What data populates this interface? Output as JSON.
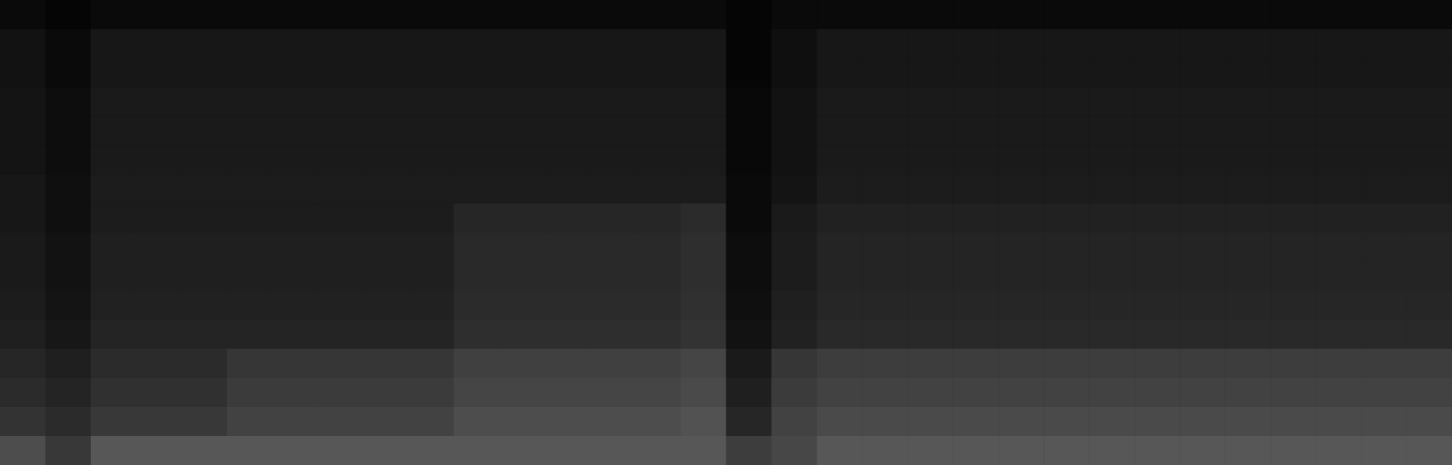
{
  "chart_data": {
    "type": "heatmap",
    "tick_labels": false,
    "zlim": [
      0,
      100
    ],
    "z": [
      [
        4,
        2,
        4,
        4,
        4,
        4,
        4,
        4,
        4,
        4,
        4,
        4,
        4,
        4,
        4,
        4,
        2,
        4,
        4,
        4,
        4,
        4,
        4,
        4,
        4,
        4,
        4,
        4,
        4,
        4,
        4,
        4
      ],
      [
        7,
        4,
        9,
        9,
        9,
        9,
        9,
        9,
        9,
        9,
        9,
        9,
        9,
        9,
        9,
        9,
        2,
        6,
        9,
        9,
        9,
        9,
        9,
        9,
        9,
        9,
        9,
        9,
        9,
        9,
        9,
        9
      ],
      [
        7,
        4,
        9,
        9,
        9,
        9,
        9,
        9,
        9,
        9,
        9,
        9,
        9,
        9,
        9,
        9,
        2,
        6,
        9,
        9,
        9,
        9,
        9,
        9,
        9,
        9,
        9,
        9,
        9,
        9,
        9,
        9
      ],
      [
        8,
        5,
        10,
        10,
        10,
        10,
        10,
        10,
        10,
        10,
        10,
        10,
        10,
        10,
        10,
        10,
        3,
        7,
        10,
        10,
        10,
        10,
        10,
        10,
        10,
        10,
        10,
        10,
        10,
        10,
        10,
        10
      ],
      [
        8,
        5,
        10,
        10,
        10,
        10,
        10,
        10,
        10,
        10,
        10,
        10,
        10,
        10,
        10,
        10,
        3,
        7,
        10,
        10,
        10,
        10,
        10,
        10,
        10,
        10,
        10,
        10,
        10,
        10,
        10,
        10
      ],
      [
        8,
        5,
        10,
        10,
        10,
        10,
        10,
        10,
        10,
        10,
        10,
        10,
        10,
        10,
        10,
        10,
        3,
        7,
        10,
        10,
        10,
        10,
        10,
        10,
        10,
        10,
        10,
        10,
        10,
        10,
        10,
        10
      ],
      [
        9,
        6,
        11,
        11,
        11,
        11,
        11,
        11,
        11,
        11,
        11,
        11,
        11,
        11,
        11,
        11,
        4,
        8,
        11,
        11,
        11,
        11,
        11,
        11,
        11,
        11,
        11,
        11,
        11,
        11,
        11,
        11
      ],
      [
        9,
        6,
        11,
        11,
        11,
        11,
        11,
        11,
        11,
        11,
        15,
        15,
        15,
        15,
        15,
        17,
        4,
        10,
        13,
        13,
        13,
        13,
        13,
        13,
        13,
        13,
        13,
        13,
        13,
        13,
        13,
        13
      ],
      [
        10,
        7,
        12,
        12,
        12,
        12,
        12,
        12,
        12,
        12,
        16,
        16,
        16,
        16,
        16,
        18,
        5,
        11,
        14,
        14,
        14,
        14,
        14,
        14,
        14,
        14,
        14,
        14,
        14,
        14,
        14,
        14
      ],
      [
        10,
        7,
        12,
        12,
        12,
        12,
        12,
        12,
        12,
        12,
        16,
        16,
        16,
        16,
        16,
        18,
        5,
        11,
        14,
        14,
        14,
        14,
        14,
        14,
        14,
        14,
        14,
        14,
        14,
        14,
        14,
        14
      ],
      [
        11,
        8,
        13,
        13,
        13,
        13,
        13,
        13,
        13,
        13,
        17,
        17,
        17,
        17,
        17,
        19,
        6,
        12,
        15,
        15,
        15,
        15,
        15,
        15,
        15,
        15,
        15,
        15,
        15,
        15,
        15,
        15
      ],
      [
        12,
        9,
        14,
        14,
        14,
        14,
        14,
        14,
        14,
        14,
        18,
        18,
        18,
        18,
        18,
        20,
        7,
        13,
        16,
        16,
        16,
        16,
        16,
        16,
        16,
        16,
        16,
        16,
        16,
        16,
        16,
        16
      ],
      [
        15,
        12,
        17,
        17,
        17,
        21,
        21,
        21,
        21,
        21,
        25,
        25,
        25,
        25,
        25,
        27,
        10,
        21,
        24,
        24,
        24,
        24,
        24,
        24,
        24,
        24,
        24,
        24,
        24,
        24,
        24,
        24
      ],
      [
        17,
        14,
        19,
        19,
        19,
        23,
        23,
        23,
        23,
        23,
        27,
        27,
        27,
        27,
        27,
        29,
        12,
        23,
        26,
        26,
        26,
        26,
        26,
        26,
        26,
        26,
        26,
        26,
        26,
        26,
        26,
        26
      ],
      [
        20,
        17,
        22,
        22,
        22,
        26,
        26,
        26,
        26,
        26,
        30,
        30,
        30,
        30,
        30,
        32,
        15,
        26,
        29,
        29,
        29,
        29,
        29,
        29,
        29,
        29,
        29,
        29,
        29,
        29,
        29,
        29
      ],
      [
        30,
        22,
        34,
        34,
        34,
        34,
        34,
        34,
        34,
        34,
        34,
        34,
        34,
        34,
        34,
        34,
        24,
        28,
        34,
        34,
        34,
        34,
        34,
        34,
        34,
        34,
        34,
        34,
        34,
        34,
        34,
        34
      ]
    ]
  }
}
